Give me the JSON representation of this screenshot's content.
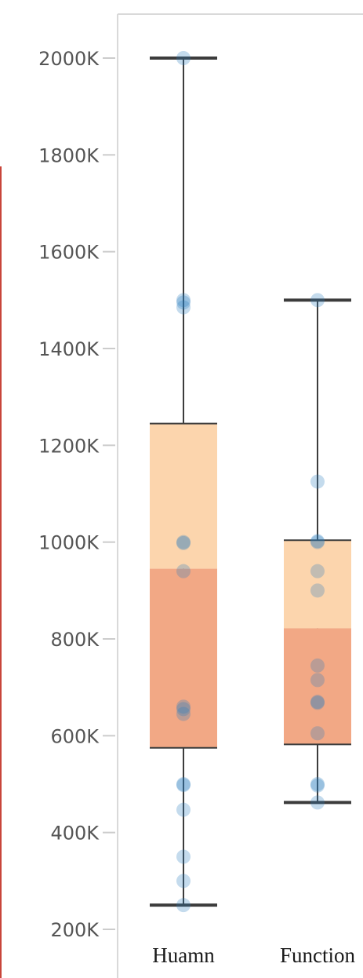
{
  "colors": {
    "background": "#ffffff",
    "plot_frame": "#d9d9d9",
    "axis_tick_text": "#555555",
    "category_text": "#1a1a1a",
    "whisker": "#3c3c3c",
    "box_upper": "#fcd5ad",
    "box_lower": "#f2a885",
    "point": "#2a7fc0",
    "left_edge_line": "#c8453a"
  },
  "chart_data": {
    "type": "box",
    "title": "",
    "xlabel": "",
    "ylabel": "",
    "ylim": [
      200000,
      2000000
    ],
    "y_tick_values": [
      200000,
      400000,
      600000,
      800000,
      1000000,
      1200000,
      1400000,
      1600000,
      1800000,
      2000000
    ],
    "y_tick_labels": [
      "200K",
      "400K",
      "600K",
      "800K",
      "1000K",
      "1200K",
      "1400K",
      "1600K",
      "1800K",
      "2000K"
    ],
    "grid": false,
    "categories": [
      "Huamn",
      "Function"
    ],
    "boxes": [
      {
        "category": "Huamn",
        "whisker_low": 250000,
        "q1": 575000,
        "median": 945000,
        "q3": 1245000,
        "whisker_high": 2000000
      },
      {
        "category": "Function",
        "whisker_low": 462000,
        "q1": 582000,
        "median": 822000,
        "q3": 1004000,
        "whisker_high": 1500000
      }
    ],
    "points": [
      {
        "category": "Huamn",
        "values": [
          2000000,
          1500000,
          1495000,
          1485000,
          1000000,
          998000,
          940000,
          660000,
          655000,
          645000,
          500000,
          498000,
          447000,
          350000,
          300000,
          250000
        ]
      },
      {
        "category": "Function",
        "values": [
          1500000,
          1125000,
          1002000,
          1000000,
          940000,
          900000,
          745000,
          715000,
          670000,
          668000,
          605000,
          500000,
          497000,
          462000
        ]
      }
    ]
  }
}
